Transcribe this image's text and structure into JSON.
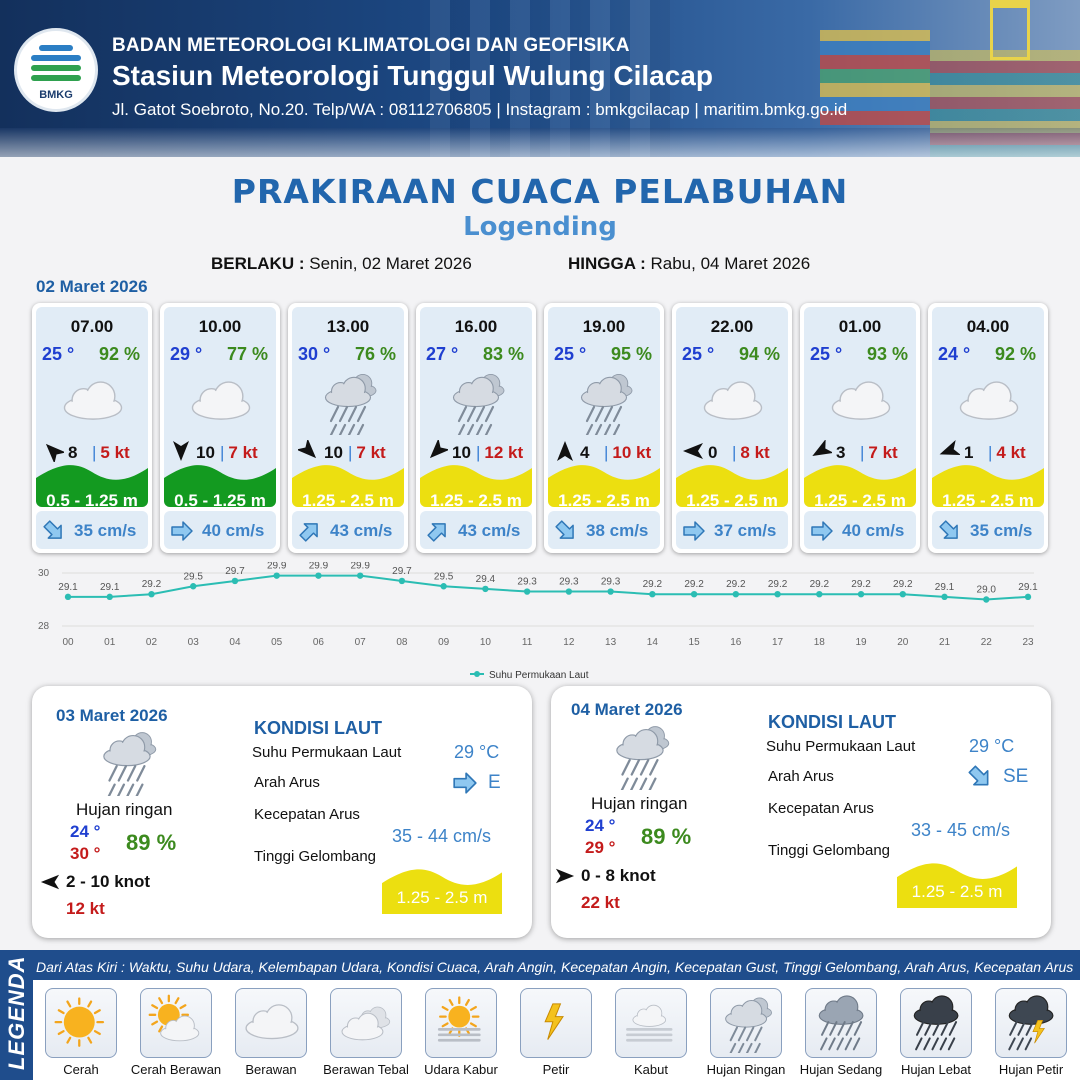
{
  "header": {
    "agency": "BADAN METEOROLOGI KLIMATOLOGI DAN GEOFISIKA",
    "station": "Stasiun Meteorologi Tunggul Wulung Cilacap",
    "contact": "Jl. Gatot Soebroto, No.20. Telp/WA : 08112706805 | Instagram : bmkgcilacap | maritim.bmkg.go.id",
    "logo_text": "BMKG"
  },
  "title": "PRAKIRAAN CUACA PELABUHAN",
  "subtitle": "Logending",
  "validity": {
    "from_label": "BERLAKU :",
    "from_value": "Senin, 02 Maret 2026",
    "to_label": "HINGGA :",
    "to_value": "Rabu, 04 Maret 2026"
  },
  "day1_date": "02 Maret 2026",
  "hourly": [
    {
      "time": "07.00",
      "temp": "25 °",
      "rh": "92 %",
      "icon": "cloudy-icon",
      "wind_dir_deg": 315,
      "wind": "8",
      "gust": "5 kt",
      "wave": "0.5 - 1.25 m",
      "wave_level": "green",
      "current_dir_deg": 135,
      "current": "35 cm/s"
    },
    {
      "time": "10.00",
      "temp": "29 °",
      "rh": "77 %",
      "icon": "cloudy-icon",
      "wind_dir_deg": 180,
      "wind": "10",
      "gust": "7 kt",
      "wave": "0.5 - 1.25 m",
      "wave_level": "green",
      "current_dir_deg": 90,
      "current": "40 cm/s"
    },
    {
      "time": "13.00",
      "temp": "30 °",
      "rh": "76 %",
      "icon": "light-rain-icon",
      "wind_dir_deg": 135,
      "wind": "10",
      "gust": "7 kt",
      "wave": "1.25 - 2.5 m",
      "wave_level": "yellow",
      "current_dir_deg": 45,
      "current": "43 cm/s"
    },
    {
      "time": "16.00",
      "temp": "27 °",
      "rh": "83 %",
      "icon": "light-rain-icon",
      "wind_dir_deg": 225,
      "wind": "10",
      "gust": "12 kt",
      "wave": "1.25 - 2.5 m",
      "wave_level": "yellow",
      "current_dir_deg": 45,
      "current": "43 cm/s"
    },
    {
      "time": "19.00",
      "temp": "25 °",
      "rh": "95 %",
      "icon": "light-rain-icon",
      "wind_dir_deg": 0,
      "wind": "4",
      "gust": "10 kt",
      "wave": "1.25 - 2.5 m",
      "wave_level": "yellow",
      "current_dir_deg": 135,
      "current": "38 cm/s"
    },
    {
      "time": "22.00",
      "temp": "25 °",
      "rh": "94 %",
      "icon": "cloudy-icon",
      "wind_dir_deg": 270,
      "wind": "0",
      "gust": "8 kt",
      "wave": "1.25 - 2.5 m",
      "wave_level": "yellow",
      "current_dir_deg": 90,
      "current": "37 cm/s"
    },
    {
      "time": "01.00",
      "temp": "25 °",
      "rh": "93 %",
      "icon": "cloudy-icon",
      "wind_dir_deg": 240,
      "wind": "3",
      "gust": "7 kt",
      "wave": "1.25 - 2.5 m",
      "wave_level": "yellow",
      "current_dir_deg": 90,
      "current": "40 cm/s"
    },
    {
      "time": "04.00",
      "temp": "24 °",
      "rh": "92 %",
      "icon": "cloudy-icon",
      "wind_dir_deg": 250,
      "wind": "1",
      "gust": "4 kt",
      "wave": "1.25 - 2.5 m",
      "wave_level": "yellow",
      "current_dir_deg": 135,
      "current": "35 cm/s"
    }
  ],
  "chart_data": {
    "type": "line",
    "x": [
      "00",
      "01",
      "02",
      "03",
      "04",
      "05",
      "06",
      "07",
      "08",
      "09",
      "10",
      "11",
      "12",
      "13",
      "14",
      "15",
      "16",
      "17",
      "18",
      "19",
      "20",
      "21",
      "22",
      "23"
    ],
    "series": [
      {
        "name": "Suhu Permukaan Laut",
        "values": [
          29.1,
          29.1,
          29.2,
          29.5,
          29.7,
          29.9,
          29.9,
          29.9,
          29.7,
          29.5,
          29.4,
          29.3,
          29.3,
          29.3,
          29.2,
          29.2,
          29.2,
          29.2,
          29.2,
          29.2,
          29.2,
          29.1,
          29.0,
          29.1
        ],
        "color": "#2bbdb3"
      }
    ],
    "yticks": [
      "28",
      "30"
    ],
    "ylim": [
      28,
      30
    ],
    "grid": true,
    "legend_position": "bottom"
  },
  "days": [
    {
      "date": "03 Maret 2026",
      "condition": "Hujan ringan",
      "icon": "light-rain-icon",
      "tmin": "24 °",
      "tmax": "30 °",
      "rh": "89 %",
      "wind_dir_deg": 270,
      "wind": "2  - 10 knot",
      "gust": "12 kt",
      "sea_heading": "KONDISI LAUT",
      "sst_label": "Suhu Permukaan Laut",
      "sst": "29 °C",
      "current_dir_label": "Arah Arus",
      "current_dir": "E",
      "current_dir_deg": 90,
      "current_speed_label": "Kecepatan Arus",
      "current_speed": "35  -  44 cm/s",
      "wave_label": "Tinggi Gelombang",
      "wave": "1.25 - 2.5 m"
    },
    {
      "date": "04 Maret 2026",
      "condition": "Hujan ringan",
      "icon": "light-rain-icon",
      "tmin": "24 °",
      "tmax": "29 °",
      "rh": "89 %",
      "wind_dir_deg": 90,
      "wind": "0  - 8 knot",
      "gust": "22 kt",
      "sea_heading": "KONDISI LAUT",
      "sst_label": "Suhu Permukaan Laut",
      "sst": "29 °C",
      "current_dir_label": "Arah Arus",
      "current_dir": "SE",
      "current_dir_deg": 135,
      "current_speed_label": "Kecepatan Arus",
      "current_speed": "33 - 45 cm/s",
      "wave_label": "Tinggi Gelombang",
      "wave": "1.25 - 2.5 m"
    }
  ],
  "legend": {
    "title": "LEGENDA",
    "description": "Dari Atas Kiri : Waktu, Suhu Udara, Kelembapan Udara, Kondisi Cuaca, Arah Angin, Kecepatan Angin, Kecepatan Gust, Tinggi Gelombang, Arah Arus, Kecepatan Arus",
    "items": [
      {
        "label": "Cerah",
        "icon": "sunny-icon"
      },
      {
        "label": "Cerah Berawan",
        "icon": "partly-cloudy-icon"
      },
      {
        "label": "Berawan",
        "icon": "cloudy-icon"
      },
      {
        "label": "Berawan Tebal",
        "icon": "overcast-icon"
      },
      {
        "label": "Udara Kabur",
        "icon": "haze-icon"
      },
      {
        "label": "Petir",
        "icon": "lightning-icon"
      },
      {
        "label": "Kabut",
        "icon": "fog-icon"
      },
      {
        "label": "Hujan Ringan",
        "icon": "light-rain-icon"
      },
      {
        "label": "Hujan Sedang",
        "icon": "moderate-rain-icon"
      },
      {
        "label": "Hujan Lebat",
        "icon": "heavy-rain-icon"
      },
      {
        "label": "Hujan Petir",
        "icon": "thunderstorm-icon"
      }
    ]
  },
  "colors": {
    "title": "#2266ad",
    "wave_green": "#139a20",
    "wave_yellow": "#ecdf10",
    "temp_blue": "#1f3fd0",
    "rh_green": "#3c8a1e",
    "gust_red": "#c41b1b",
    "current_blue": "#3d83c8"
  }
}
